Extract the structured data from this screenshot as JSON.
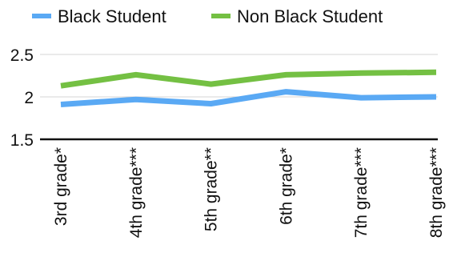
{
  "chart_data": {
    "type": "line",
    "categories": [
      "3rd grade*",
      "4th grade***",
      "5th grade**",
      "6th grade*",
      "7th grade***",
      "8th grade***"
    ],
    "series": [
      {
        "name": "Black Student",
        "values": [
          1.91,
          1.97,
          1.92,
          2.06,
          1.99,
          2.0
        ],
        "color": "#5aa9f4"
      },
      {
        "name": "Non Black Student",
        "values": [
          2.13,
          2.26,
          2.15,
          2.26,
          2.28,
          2.29
        ],
        "color": "#74c043"
      }
    ],
    "ylim": [
      1.5,
      2.5
    ],
    "yticks": [
      1.5,
      2,
      2.5
    ],
    "ytick_labels": [
      "1.5",
      "2",
      "2.5"
    ],
    "grid": true,
    "legend_position": "top",
    "title": "",
    "xlabel": "",
    "ylabel": ""
  }
}
